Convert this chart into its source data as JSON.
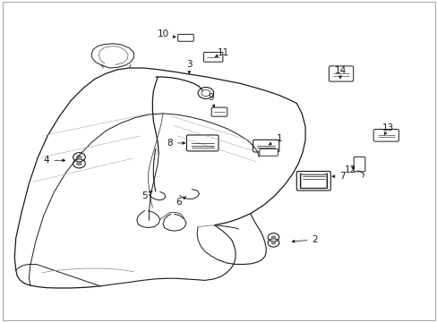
{
  "background_color": "#ffffff",
  "line_color": "#1a1a1a",
  "fig_width": 4.89,
  "fig_height": 3.6,
  "dpi": 100,
  "label_fontsize": 7.5,
  "labels": {
    "1": [
      0.638,
      0.548,
      0.61,
      0.535
    ],
    "2": [
      0.72,
      0.248,
      0.68,
      0.24
    ],
    "3": [
      0.432,
      0.79,
      0.432,
      0.758
    ],
    "4": [
      0.108,
      0.498,
      0.158,
      0.498
    ],
    "5": [
      0.338,
      0.388,
      0.355,
      0.408
    ],
    "6": [
      0.41,
      0.368,
      0.42,
      0.39
    ],
    "7": [
      0.778,
      0.448,
      0.738,
      0.448
    ],
    "8": [
      0.388,
      0.548,
      0.428,
      0.548
    ],
    "9": [
      0.485,
      0.688,
      0.49,
      0.658
    ],
    "10": [
      0.375,
      0.888,
      0.408,
      0.878
    ],
    "11": [
      0.508,
      0.828,
      0.49,
      0.808
    ],
    "12": [
      0.805,
      0.468,
      0.818,
      0.488
    ],
    "13": [
      0.888,
      0.598,
      0.875,
      0.578
    ],
    "14": [
      0.778,
      0.778,
      0.778,
      0.748
    ]
  }
}
